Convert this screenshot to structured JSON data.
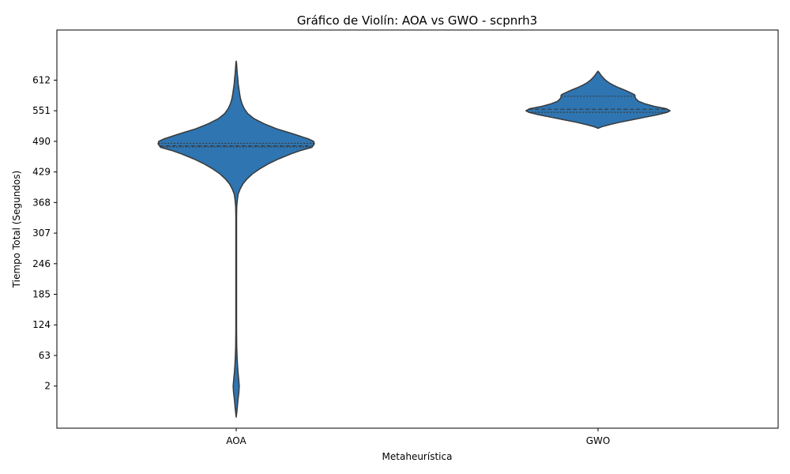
{
  "chart_data": {
    "type": "violin",
    "title": "Gráfico de Violín: AOA vs GWO - scpnrh3",
    "xlabel": "Metaheurística",
    "ylabel": "Tiempo Total (Segundos)",
    "categories": [
      "AOA",
      "GWO"
    ],
    "y_ticks": [
      2,
      63,
      124,
      185,
      246,
      307,
      368,
      429,
      490,
      551,
      612
    ],
    "ylim": [
      -82,
      712
    ],
    "grid": false,
    "legend": "none",
    "colors": {
      "fill": "#2e75b1",
      "edge": "#3a3a3a",
      "frame": "#000000"
    },
    "series": [
      {
        "category": "AOA",
        "quartiles": {
          "q1": 479,
          "median": 481,
          "q3": 486
        },
        "density": [
          {
            "y": -60,
            "w": 0.0
          },
          {
            "y": -45,
            "w": 0.005
          },
          {
            "y": -25,
            "w": 0.01
          },
          {
            "y": -10,
            "w": 0.015
          },
          {
            "y": 2,
            "w": 0.017
          },
          {
            "y": 15,
            "w": 0.014
          },
          {
            "y": 30,
            "w": 0.01
          },
          {
            "y": 45,
            "w": 0.007
          },
          {
            "y": 60,
            "w": 0.005
          },
          {
            "y": 80,
            "w": 0.003
          },
          {
            "y": 110,
            "w": 0.002
          },
          {
            "y": 200,
            "w": 0.002
          },
          {
            "y": 300,
            "w": 0.002
          },
          {
            "y": 340,
            "w": 0.002
          },
          {
            "y": 360,
            "w": 0.003
          },
          {
            "y": 375,
            "w": 0.007
          },
          {
            "y": 385,
            "w": 0.011
          },
          {
            "y": 395,
            "w": 0.022
          },
          {
            "y": 405,
            "w": 0.037
          },
          {
            "y": 415,
            "w": 0.06
          },
          {
            "y": 425,
            "w": 0.09
          },
          {
            "y": 435,
            "w": 0.13
          },
          {
            "y": 445,
            "w": 0.178
          },
          {
            "y": 455,
            "w": 0.236
          },
          {
            "y": 465,
            "w": 0.304
          },
          {
            "y": 472,
            "w": 0.36
          },
          {
            "y": 478,
            "w": 0.42
          },
          {
            "y": 485,
            "w": 0.434
          },
          {
            "y": 490,
            "w": 0.43
          },
          {
            "y": 495,
            "w": 0.4
          },
          {
            "y": 505,
            "w": 0.315
          },
          {
            "y": 515,
            "w": 0.225
          },
          {
            "y": 525,
            "w": 0.155
          },
          {
            "y": 535,
            "w": 0.1
          },
          {
            "y": 545,
            "w": 0.065
          },
          {
            "y": 555,
            "w": 0.045
          },
          {
            "y": 565,
            "w": 0.032
          },
          {
            "y": 575,
            "w": 0.024
          },
          {
            "y": 585,
            "w": 0.019
          },
          {
            "y": 595,
            "w": 0.015
          },
          {
            "y": 605,
            "w": 0.011
          },
          {
            "y": 615,
            "w": 0.009
          },
          {
            "y": 625,
            "w": 0.006
          },
          {
            "y": 635,
            "w": 0.004
          },
          {
            "y": 645,
            "w": 0.002
          },
          {
            "y": 650,
            "w": 0.0
          }
        ]
      },
      {
        "category": "GWO",
        "quartiles": {
          "q1": 548,
          "median": 554,
          "q3": 580
        },
        "density": [
          {
            "y": 516,
            "w": 0.0
          },
          {
            "y": 519,
            "w": 0.02
          },
          {
            "y": 523,
            "w": 0.06
          },
          {
            "y": 528,
            "w": 0.12
          },
          {
            "y": 533,
            "w": 0.19
          },
          {
            "y": 538,
            "w": 0.26
          },
          {
            "y": 543,
            "w": 0.33
          },
          {
            "y": 548,
            "w": 0.385
          },
          {
            "y": 551,
            "w": 0.4
          },
          {
            "y": 555,
            "w": 0.38
          },
          {
            "y": 560,
            "w": 0.31
          },
          {
            "y": 565,
            "w": 0.26
          },
          {
            "y": 570,
            "w": 0.225
          },
          {
            "y": 575,
            "w": 0.21
          },
          {
            "y": 579,
            "w": 0.205
          },
          {
            "y": 582,
            "w": 0.205
          },
          {
            "y": 584,
            "w": 0.198
          },
          {
            "y": 587,
            "w": 0.18
          },
          {
            "y": 592,
            "w": 0.15
          },
          {
            "y": 597,
            "w": 0.115
          },
          {
            "y": 602,
            "w": 0.085
          },
          {
            "y": 607,
            "w": 0.06
          },
          {
            "y": 612,
            "w": 0.042
          },
          {
            "y": 617,
            "w": 0.028
          },
          {
            "y": 622,
            "w": 0.016
          },
          {
            "y": 627,
            "w": 0.007
          },
          {
            "y": 630,
            "w": 0.0
          }
        ]
      }
    ]
  }
}
